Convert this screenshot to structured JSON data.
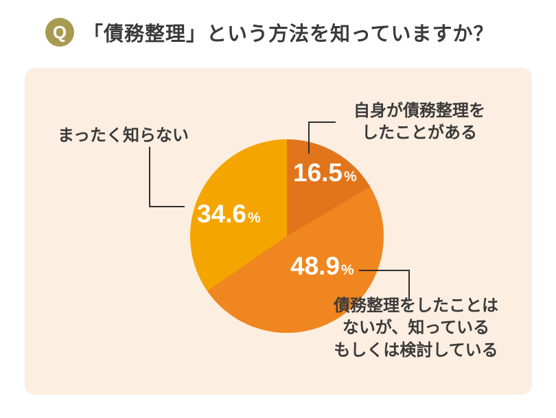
{
  "header": {
    "q_badge": "Q",
    "title": "「債務整理」という方法を知っていますか？"
  },
  "colors": {
    "badge": "#a79b52",
    "card-bg": "#fceee1",
    "line": "#2e2e2e",
    "text": "#3a3a3a",
    "value-text": "#ffffff"
  },
  "chart_data": {
    "type": "pie",
    "title": "「債務整理」という方法を知っていますか？",
    "start_angle_deg": 0,
    "direction": "clockwise",
    "legend_position": "callouts",
    "slices": [
      {
        "label": "自身が債務整理をしたことがある",
        "value": 16.5,
        "display": "16.5",
        "unit": "%",
        "color": "#e2751c"
      },
      {
        "label": "債務整理をしたことはないが、知っている もしくは検討している",
        "value": 48.9,
        "display": "48.9",
        "unit": "%",
        "color": "#f0861f"
      },
      {
        "label": "まったく知らない",
        "value": 34.6,
        "display": "34.6",
        "unit": "%",
        "color": "#f5a500"
      }
    ]
  },
  "callouts": {
    "dont_know": {
      "label": "まったく知らない"
    },
    "have_done": {
      "lines": [
        "自身が債務整理を",
        "したことがある"
      ]
    },
    "know_or_considering": {
      "lines": [
        "債務整理をしたことは",
        "ないが、知っている",
        "もしくは検討している"
      ]
    }
  }
}
